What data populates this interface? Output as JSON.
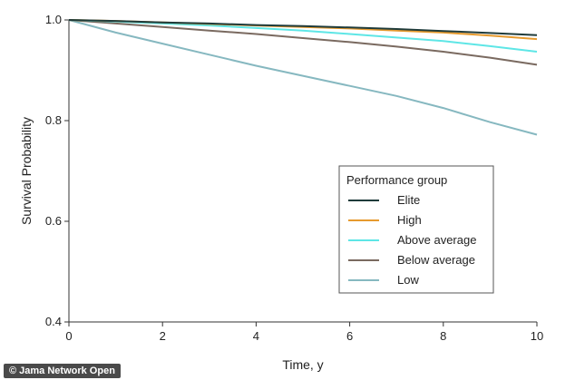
{
  "chart_data": {
    "type": "line",
    "xlabel": "Time, y",
    "ylabel": "Survival Probability",
    "xlim": [
      0,
      10
    ],
    "ylim": [
      0.4,
      1.0
    ],
    "xticks": [
      "0",
      "2",
      "4",
      "6",
      "8",
      "10"
    ],
    "yticks": [
      "0.4",
      "0.6",
      "0.8",
      "1.0"
    ],
    "grid": false,
    "legend": {
      "title": "Performance group",
      "placement": "lower-right"
    },
    "x": [
      0,
      1,
      2,
      3,
      4,
      5,
      6,
      7,
      8,
      9,
      10
    ],
    "series": [
      {
        "name": "Elite",
        "color": "#1f3b3a",
        "values": [
          1.0,
          0.998,
          0.995,
          0.993,
          0.99,
          0.988,
          0.985,
          0.982,
          0.978,
          0.974,
          0.97
        ]
      },
      {
        "name": "High",
        "color": "#e69a2e",
        "values": [
          1.0,
          0.998,
          0.995,
          0.992,
          0.989,
          0.986,
          0.983,
          0.979,
          0.975,
          0.969,
          0.962
        ]
      },
      {
        "name": "Above average",
        "color": "#5ee6e6",
        "values": [
          1.0,
          0.997,
          0.993,
          0.989,
          0.984,
          0.979,
          0.972,
          0.965,
          0.958,
          0.948,
          0.937
        ]
      },
      {
        "name": "Below average",
        "color": "#7a6a60",
        "values": [
          1.0,
          0.993,
          0.986,
          0.979,
          0.972,
          0.964,
          0.956,
          0.947,
          0.937,
          0.925,
          0.911
        ]
      },
      {
        "name": "Low",
        "color": "#86b8c0",
        "values": [
          1.0,
          0.975,
          0.953,
          0.931,
          0.909,
          0.889,
          0.869,
          0.849,
          0.825,
          0.797,
          0.772
        ]
      }
    ]
  },
  "credit": "© Jama Network Open"
}
